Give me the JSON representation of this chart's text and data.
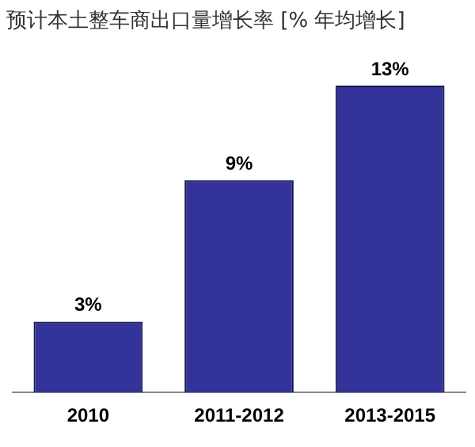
{
  "chart_data": {
    "type": "bar",
    "title": "预计本土整车商出口量增长率 [% 年均增长]",
    "categories": [
      "2010",
      "2011-2012",
      "2013-2015"
    ],
    "values": [
      3,
      9,
      13
    ],
    "value_labels": [
      "3%",
      "9%",
      "13%"
    ],
    "color": "#333399",
    "grid": false,
    "legend": false
  }
}
